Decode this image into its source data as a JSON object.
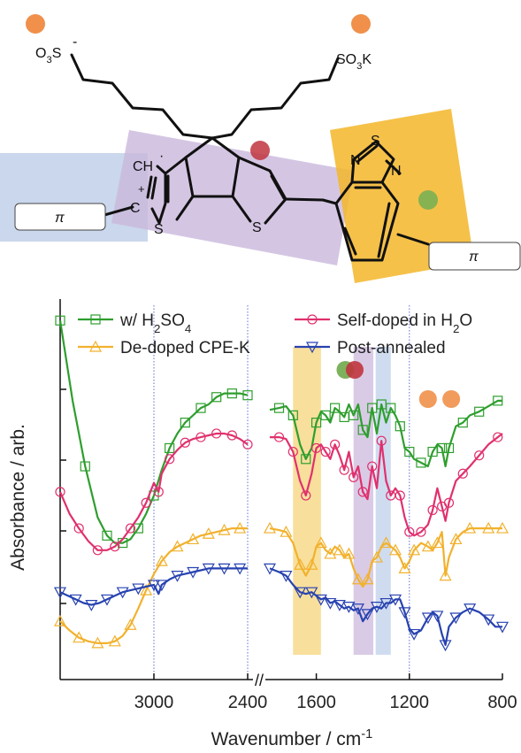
{
  "structure": {
    "labels": {
      "o3s": "O3S",
      "minus": "-",
      "so3k": "SO3K",
      "ch": "CH",
      "radical": "·",
      "plus": "+",
      "c": "C",
      "s_left": "S",
      "s_mid": "S",
      "n_top": "N",
      "s_top": "S",
      "n_right": "N",
      "pi_left": "π",
      "pi_right": "π"
    },
    "colors": {
      "blue_region": "#b8c9e6",
      "purple_region": "#c9b8dc",
      "yellow_region": "#f3b629",
      "bond": "#111111",
      "orange_marker": "#f0904a",
      "red_marker": "#c0343e",
      "green_marker": "#7bb052"
    }
  },
  "chart_data": {
    "type": "line",
    "xlabel": "Wavenumber / cm-1",
    "ylabel": "Absorbance / arb.",
    "x_axis": "reversed, broken between 2400 and 1800",
    "x_segments": [
      {
        "range": [
          3600,
          2400
        ],
        "ticks": [
          3000,
          2400
        ]
      },
      {
        "range": [
          1800,
          800
        ],
        "ticks": [
          1600,
          1200,
          800
        ]
      }
    ],
    "tick_labels": [
      "3000",
      "2400",
      "1600",
      "1200",
      "800"
    ],
    "axis_break_mark": "//",
    "legend_position": "top",
    "legend": [
      {
        "name": "w/ H2SO4",
        "color": "#2e9e2e",
        "marker": "square"
      },
      {
        "name": "Self-doped in H2O",
        "color": "#e0306e",
        "marker": "circle"
      },
      {
        "name": "De-doped CPE-K",
        "color": "#f2b12c",
        "marker": "triangle-up"
      },
      {
        "name": "Post-annealed",
        "color": "#2742b0",
        "marker": "triangle-down"
      }
    ],
    "highlight_bands": [
      {
        "from": 1700,
        "to": 1580,
        "color": "#f3c54a"
      },
      {
        "from": 1440,
        "to": 1355,
        "color": "#b9a0cf"
      },
      {
        "from": 1345,
        "to": 1280,
        "color": "#a8c0e4"
      }
    ],
    "reference_lines": [
      3000,
      2400,
      1200
    ],
    "band_markers": [
      {
        "x": 1475,
        "color": "#6fa84a"
      },
      {
        "x": 1435,
        "color": "#c0343e"
      },
      {
        "x": 1120,
        "color": "#f0904a"
      },
      {
        "x": 1020,
        "color": "#f0904a"
      }
    ],
    "series": [
      {
        "name": "w/ H2SO4",
        "points": [
          [
            3600,
            0.98
          ],
          [
            3520,
            0.76
          ],
          [
            3440,
            0.58
          ],
          [
            3360,
            0.44
          ],
          [
            3300,
            0.39
          ],
          [
            3250,
            0.37
          ],
          [
            3200,
            0.37
          ],
          [
            3150,
            0.38
          ],
          [
            3100,
            0.41
          ],
          [
            3050,
            0.45
          ],
          [
            3000,
            0.5
          ],
          [
            2950,
            0.57
          ],
          [
            2900,
            0.63
          ],
          [
            2850,
            0.67
          ],
          [
            2800,
            0.7
          ],
          [
            2750,
            0.72
          ],
          [
            2700,
            0.74
          ],
          [
            2650,
            0.75
          ],
          [
            2600,
            0.77
          ],
          [
            2550,
            0.78
          ],
          [
            2500,
            0.78
          ],
          [
            2450,
            0.78
          ],
          [
            2400,
            0.775
          ],
          [
            1800,
            0.735
          ],
          [
            1760,
            0.74
          ],
          [
            1730,
            0.745
          ],
          [
            1700,
            0.72
          ],
          [
            1670,
            0.64
          ],
          [
            1645,
            0.6
          ],
          [
            1620,
            0.63
          ],
          [
            1600,
            0.7
          ],
          [
            1580,
            0.73
          ],
          [
            1560,
            0.72
          ],
          [
            1540,
            0.7
          ],
          [
            1520,
            0.74
          ],
          [
            1500,
            0.73
          ],
          [
            1480,
            0.715
          ],
          [
            1460,
            0.75
          ],
          [
            1440,
            0.72
          ],
          [
            1420,
            0.75
          ],
          [
            1400,
            0.68
          ],
          [
            1380,
            0.66
          ],
          [
            1360,
            0.74
          ],
          [
            1340,
            0.67
          ],
          [
            1320,
            0.75
          ],
          [
            1300,
            0.7
          ],
          [
            1280,
            0.74
          ],
          [
            1260,
            0.72
          ],
          [
            1240,
            0.69
          ],
          [
            1220,
            0.63
          ],
          [
            1200,
            0.62
          ],
          [
            1180,
            0.6
          ],
          [
            1150,
            0.59
          ],
          [
            1120,
            0.58
          ],
          [
            1100,
            0.62
          ],
          [
            1080,
            0.64
          ],
          [
            1060,
            0.63
          ],
          [
            1045,
            0.58
          ],
          [
            1030,
            0.63
          ],
          [
            1000,
            0.69
          ],
          [
            970,
            0.7
          ],
          [
            940,
            0.72
          ],
          [
            900,
            0.73
          ],
          [
            860,
            0.745
          ],
          [
            820,
            0.76
          ],
          [
            800,
            0.76
          ]
        ]
      },
      {
        "name": "Self-doped in H2O",
        "points": [
          [
            3600,
            0.51
          ],
          [
            3540,
            0.45
          ],
          [
            3480,
            0.41
          ],
          [
            3420,
            0.375
          ],
          [
            3360,
            0.35
          ],
          [
            3300,
            0.35
          ],
          [
            3250,
            0.36
          ],
          [
            3200,
            0.38
          ],
          [
            3150,
            0.41
          ],
          [
            3100,
            0.44
          ],
          [
            3050,
            0.48
          ],
          [
            3000,
            0.535
          ],
          [
            2970,
            0.51
          ],
          [
            2950,
            0.56
          ],
          [
            2900,
            0.6
          ],
          [
            2850,
            0.625
          ],
          [
            2800,
            0.645
          ],
          [
            2750,
            0.655
          ],
          [
            2700,
            0.66
          ],
          [
            2650,
            0.665
          ],
          [
            2600,
            0.67
          ],
          [
            2550,
            0.67
          ],
          [
            2500,
            0.665
          ],
          [
            2450,
            0.655
          ],
          [
            2400,
            0.64
          ],
          [
            1800,
            0.66
          ],
          [
            1760,
            0.66
          ],
          [
            1730,
            0.655
          ],
          [
            1700,
            0.62
          ],
          [
            1670,
            0.54
          ],
          [
            1645,
            0.5
          ],
          [
            1620,
            0.56
          ],
          [
            1600,
            0.63
          ],
          [
            1580,
            0.64
          ],
          [
            1560,
            0.62
          ],
          [
            1540,
            0.6
          ],
          [
            1520,
            0.64
          ],
          [
            1500,
            0.61
          ],
          [
            1480,
            0.57
          ],
          [
            1460,
            0.62
          ],
          [
            1440,
            0.55
          ],
          [
            1420,
            0.58
          ],
          [
            1400,
            0.51
          ],
          [
            1380,
            0.49
          ],
          [
            1360,
            0.58
          ],
          [
            1340,
            0.52
          ],
          [
            1320,
            0.65
          ],
          [
            1300,
            0.54
          ],
          [
            1280,
            0.5
          ],
          [
            1260,
            0.52
          ],
          [
            1240,
            0.5
          ],
          [
            1220,
            0.44
          ],
          [
            1200,
            0.4
          ],
          [
            1180,
            0.39
          ],
          [
            1150,
            0.4
          ],
          [
            1120,
            0.42
          ],
          [
            1100,
            0.46
          ],
          [
            1080,
            0.52
          ],
          [
            1060,
            0.47
          ],
          [
            1045,
            0.43
          ],
          [
            1030,
            0.48
          ],
          [
            1000,
            0.54
          ],
          [
            970,
            0.56
          ],
          [
            940,
            0.58
          ],
          [
            900,
            0.61
          ],
          [
            860,
            0.64
          ],
          [
            820,
            0.66
          ],
          [
            800,
            0.67
          ]
        ]
      },
      {
        "name": "De-doped CPE-K",
        "points": [
          [
            3600,
            0.155
          ],
          [
            3540,
            0.13
          ],
          [
            3480,
            0.11
          ],
          [
            3420,
            0.1
          ],
          [
            3360,
            0.095
          ],
          [
            3300,
            0.095
          ],
          [
            3250,
            0.1
          ],
          [
            3200,
            0.115
          ],
          [
            3150,
            0.145
          ],
          [
            3100,
            0.19
          ],
          [
            3050,
            0.24
          ],
          [
            3000,
            0.285
          ],
          [
            2950,
            0.32
          ],
          [
            2900,
            0.345
          ],
          [
            2850,
            0.36
          ],
          [
            2800,
            0.37
          ],
          [
            2750,
            0.38
          ],
          [
            2700,
            0.39
          ],
          [
            2650,
            0.395
          ],
          [
            2600,
            0.4
          ],
          [
            2550,
            0.405
          ],
          [
            2500,
            0.41
          ],
          [
            2450,
            0.41
          ],
          [
            2400,
            0.41
          ],
          [
            1800,
            0.41
          ],
          [
            1760,
            0.405
          ],
          [
            1730,
            0.4
          ],
          [
            1700,
            0.37
          ],
          [
            1670,
            0.31
          ],
          [
            1645,
            0.28
          ],
          [
            1620,
            0.31
          ],
          [
            1600,
            0.36
          ],
          [
            1580,
            0.37
          ],
          [
            1560,
            0.35
          ],
          [
            1540,
            0.34
          ],
          [
            1520,
            0.36
          ],
          [
            1500,
            0.35
          ],
          [
            1480,
            0.33
          ],
          [
            1460,
            0.34
          ],
          [
            1440,
            0.3
          ],
          [
            1420,
            0.27
          ],
          [
            1400,
            0.25
          ],
          [
            1380,
            0.27
          ],
          [
            1360,
            0.32
          ],
          [
            1340,
            0.33
          ],
          [
            1320,
            0.36
          ],
          [
            1300,
            0.37
          ],
          [
            1280,
            0.36
          ],
          [
            1260,
            0.35
          ],
          [
            1240,
            0.33
          ],
          [
            1220,
            0.3
          ],
          [
            1200,
            0.32
          ],
          [
            1180,
            0.35
          ],
          [
            1150,
            0.37
          ],
          [
            1120,
            0.36
          ],
          [
            1100,
            0.35
          ],
          [
            1080,
            0.37
          ],
          [
            1060,
            0.4
          ],
          [
            1045,
            0.28
          ],
          [
            1030,
            0.33
          ],
          [
            1000,
            0.38
          ],
          [
            970,
            0.4
          ],
          [
            940,
            0.41
          ],
          [
            900,
            0.41
          ],
          [
            860,
            0.41
          ],
          [
            820,
            0.41
          ],
          [
            800,
            0.41
          ]
        ]
      },
      {
        "name": "Post-annealed",
        "points": [
          [
            3600,
            0.235
          ],
          [
            3550,
            0.225
          ],
          [
            3500,
            0.215
          ],
          [
            3450,
            0.205
          ],
          [
            3400,
            0.2
          ],
          [
            3350,
            0.205
          ],
          [
            3300,
            0.215
          ],
          [
            3250,
            0.225
          ],
          [
            3200,
            0.235
          ],
          [
            3150,
            0.24
          ],
          [
            3100,
            0.245
          ],
          [
            3050,
            0.25
          ],
          [
            3000,
            0.255
          ],
          [
            2970,
            0.23
          ],
          [
            2950,
            0.255
          ],
          [
            2900,
            0.27
          ],
          [
            2850,
            0.28
          ],
          [
            2800,
            0.285
          ],
          [
            2750,
            0.29
          ],
          [
            2700,
            0.295
          ],
          [
            2650,
            0.3
          ],
          [
            2600,
            0.3
          ],
          [
            2550,
            0.3
          ],
          [
            2500,
            0.3
          ],
          [
            2450,
            0.3
          ],
          [
            2400,
            0.3
          ],
          [
            1800,
            0.3
          ],
          [
            1760,
            0.29
          ],
          [
            1730,
            0.28
          ],
          [
            1700,
            0.255
          ],
          [
            1670,
            0.235
          ],
          [
            1645,
            0.23
          ],
          [
            1620,
            0.235
          ],
          [
            1600,
            0.225
          ],
          [
            1580,
            0.215
          ],
          [
            1560,
            0.22
          ],
          [
            1540,
            0.205
          ],
          [
            1520,
            0.21
          ],
          [
            1500,
            0.2
          ],
          [
            1480,
            0.19
          ],
          [
            1460,
            0.195
          ],
          [
            1440,
            0.185
          ],
          [
            1420,
            0.19
          ],
          [
            1400,
            0.155
          ],
          [
            1380,
            0.175
          ],
          [
            1360,
            0.19
          ],
          [
            1340,
            0.195
          ],
          [
            1320,
            0.19
          ],
          [
            1300,
            0.205
          ],
          [
            1280,
            0.205
          ],
          [
            1260,
            0.215
          ],
          [
            1240,
            0.215
          ],
          [
            1220,
            0.18
          ],
          [
            1200,
            0.135
          ],
          [
            1180,
            0.12
          ],
          [
            1150,
            0.13
          ],
          [
            1120,
            0.165
          ],
          [
            1100,
            0.18
          ],
          [
            1080,
            0.17
          ],
          [
            1060,
            0.12
          ],
          [
            1045,
            0.09
          ],
          [
            1030,
            0.14
          ],
          [
            1000,
            0.165
          ],
          [
            970,
            0.18
          ],
          [
            940,
            0.19
          ],
          [
            900,
            0.18
          ],
          [
            860,
            0.16
          ],
          [
            830,
            0.14
          ],
          [
            800,
            0.14
          ]
        ]
      }
    ]
  }
}
